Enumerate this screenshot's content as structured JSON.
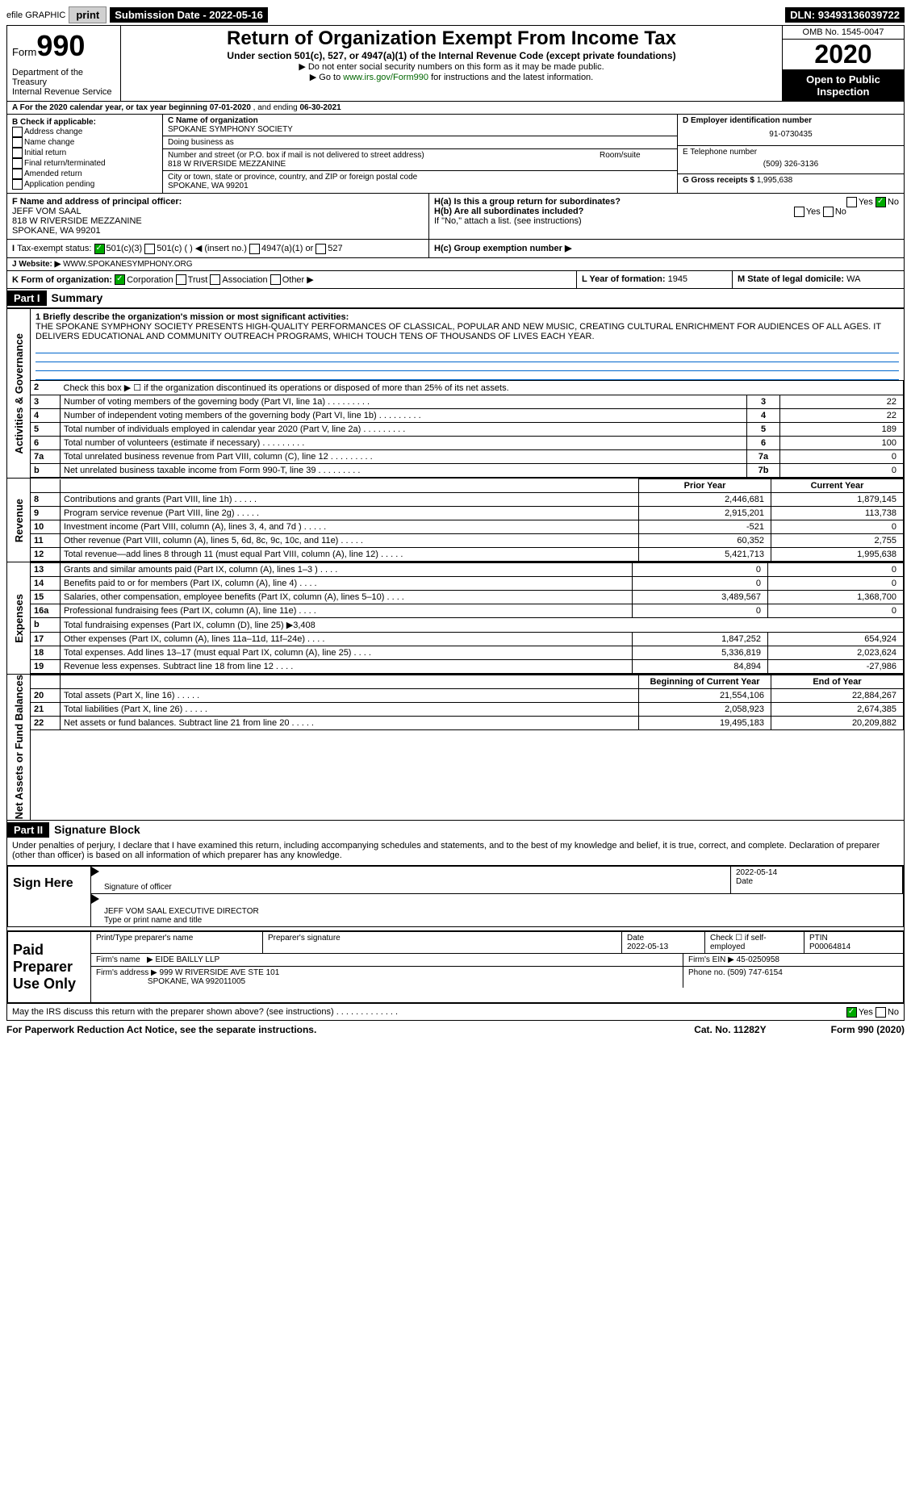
{
  "topbar": {
    "efile": "efile GRAPHIC",
    "print": "print",
    "subdate_label": "Submission Date -",
    "subdate": "2022-05-16",
    "dln_label": "DLN:",
    "dln": "93493136039722"
  },
  "hdr": {
    "form": "Form",
    "n990": "990",
    "title": "Return of Organization Exempt From Income Tax",
    "sub": "Under section 501(c), 527, or 4947(a)(1) of the Internal Revenue Code (except private foundations)",
    "note1": "▶ Do not enter social security numbers on this form as it may be made public.",
    "note2": "▶ Go to ",
    "link": "www.irs.gov/Form990",
    "note2b": " for instructions and the latest information.",
    "dept": "Department of the Treasury",
    "irs": "Internal Revenue Service",
    "omb": "OMB No. 1545-0047",
    "year": "2020",
    "open": "Open to Public Inspection"
  },
  "A": {
    "text": "A For the 2020 calendar year, or tax year beginning ",
    "d1": "07-01-2020",
    "mid": " , and ending ",
    "d2": "06-30-2021"
  },
  "B": {
    "label": "B Check if applicable:",
    "items": [
      "Address change",
      "Name change",
      "Initial return",
      "Final return/terminated",
      "Amended return",
      "Application pending"
    ]
  },
  "C": {
    "label": "C Name of organization",
    "name": "SPOKANE SYMPHONY SOCIETY",
    "dba": "Doing business as",
    "addr_label": "Number and street (or P.O. box if mail is not delivered to street address)",
    "addr": "818 W RIVERSIDE MEZZANINE",
    "room": "Room/suite",
    "city_label": "City or town, state or province, country, and ZIP or foreign postal code",
    "city": "SPOKANE, WA  99201"
  },
  "D": {
    "label": "D Employer identification number",
    "ein": "91-0730435"
  },
  "E": {
    "label": "E Telephone number",
    "tel": "(509) 326-3136"
  },
  "G": {
    "label": "G Gross receipts $",
    "val": "1,995,638"
  },
  "F": {
    "label": "F Name and address of principal officer:",
    "name": "JEFF VOM SAAL",
    "addr": "818 W RIVERSIDE MEZZANINE",
    "city": "SPOKANE, WA  99201"
  },
  "H": {
    "a": "H(a)  Is this a group return for subordinates?",
    "b": "H(b)  Are all subordinates included?",
    "bno": "If \"No,\" attach a list. (see instructions)",
    "c": "H(c)  Group exemption number ▶",
    "yes": "Yes",
    "no": "No"
  },
  "I": {
    "label": "Tax-exempt status:",
    "o1": "501(c)(3)",
    "o2": "501(c) (   ) ◀ (insert no.)",
    "o3": "4947(a)(1) or",
    "o4": "527"
  },
  "J": {
    "label": "Website: ▶",
    "val": "WWW.SPOKANESYMPHONY.ORG"
  },
  "K": {
    "label": "K Form of organization:",
    "opts": [
      "Corporation",
      "Trust",
      "Association",
      "Other ▶"
    ]
  },
  "L": {
    "label": "L Year of formation:",
    "val": "1945"
  },
  "M": {
    "label": "M State of legal domicile:",
    "val": "WA"
  },
  "partI": {
    "bar": "Part I",
    "title": "Summary"
  },
  "mission": {
    "line": "1  Briefly describe the organization's mission or most significant activities:",
    "text": "THE SPOKANE SYMPHONY SOCIETY PRESENTS HIGH-QUALITY PERFORMANCES OF CLASSICAL, POPULAR AND NEW MUSIC, CREATING CULTURAL ENRICHMENT FOR AUDIENCES OF ALL AGES. IT DELIVERS EDUCATIONAL AND COMMUNITY OUTREACH PROGRAMS, WHICH TOUCH TENS OF THOUSANDS OF LIVES EACH YEAR."
  },
  "gov": {
    "label": "Activities & Governance",
    "rows": [
      {
        "n": "2",
        "t": "Check this box ▶ ☐ if the organization discontinued its operations or disposed of more than 25% of its net assets.",
        "k": "",
        "v": ""
      },
      {
        "n": "3",
        "t": "Number of voting members of the governing body (Part VI, line 1a)",
        "k": "3",
        "v": "22"
      },
      {
        "n": "4",
        "t": "Number of independent voting members of the governing body (Part VI, line 1b)",
        "k": "4",
        "v": "22"
      },
      {
        "n": "5",
        "t": "Total number of individuals employed in calendar year 2020 (Part V, line 2a)",
        "k": "5",
        "v": "189"
      },
      {
        "n": "6",
        "t": "Total number of volunteers (estimate if necessary)",
        "k": "6",
        "v": "100"
      },
      {
        "n": "7a",
        "t": "Total unrelated business revenue from Part VIII, column (C), line 12",
        "k": "7a",
        "v": "0"
      },
      {
        "n": "b",
        "t": "Net unrelated business taxable income from Form 990-T, line 39",
        "k": "7b",
        "v": "0"
      }
    ]
  },
  "rev": {
    "label": "Revenue",
    "hdr_prior": "Prior Year",
    "hdr_curr": "Current Year",
    "rows": [
      {
        "n": "8",
        "t": "Contributions and grants (Part VIII, line 1h)",
        "p": "2,446,681",
        "c": "1,879,145"
      },
      {
        "n": "9",
        "t": "Program service revenue (Part VIII, line 2g)",
        "p": "2,915,201",
        "c": "113,738"
      },
      {
        "n": "10",
        "t": "Investment income (Part VIII, column (A), lines 3, 4, and 7d )",
        "p": "-521",
        "c": "0"
      },
      {
        "n": "11",
        "t": "Other revenue (Part VIII, column (A), lines 5, 6d, 8c, 9c, 10c, and 11e)",
        "p": "60,352",
        "c": "2,755"
      },
      {
        "n": "12",
        "t": "Total revenue—add lines 8 through 11 (must equal Part VIII, column (A), line 12)",
        "p": "5,421,713",
        "c": "1,995,638"
      }
    ]
  },
  "exp": {
    "label": "Expenses",
    "rows": [
      {
        "n": "13",
        "t": "Grants and similar amounts paid (Part IX, column (A), lines 1–3 )",
        "p": "0",
        "c": "0"
      },
      {
        "n": "14",
        "t": "Benefits paid to or for members (Part IX, column (A), line 4)",
        "p": "0",
        "c": "0"
      },
      {
        "n": "15",
        "t": "Salaries, other compensation, employee benefits (Part IX, column (A), lines 5–10)",
        "p": "3,489,567",
        "c": "1,368,700"
      },
      {
        "n": "16a",
        "t": "Professional fundraising fees (Part IX, column (A), line 11e)",
        "p": "0",
        "c": "0"
      },
      {
        "n": "b",
        "t": "Total fundraising expenses (Part IX, column (D), line 25) ▶3,408",
        "p": "",
        "c": ""
      },
      {
        "n": "17",
        "t": "Other expenses (Part IX, column (A), lines 11a–11d, 11f–24e)",
        "p": "1,847,252",
        "c": "654,924"
      },
      {
        "n": "18",
        "t": "Total expenses. Add lines 13–17 (must equal Part IX, column (A), line 25)",
        "p": "5,336,819",
        "c": "2,023,624"
      },
      {
        "n": "19",
        "t": "Revenue less expenses. Subtract line 18 from line 12",
        "p": "84,894",
        "c": "-27,986"
      }
    ]
  },
  "net": {
    "label": "Net Assets or Fund Balances",
    "hdr_b": "Beginning of Current Year",
    "hdr_e": "End of Year",
    "rows": [
      {
        "n": "20",
        "t": "Total assets (Part X, line 16)",
        "p": "21,554,106",
        "c": "22,884,267"
      },
      {
        "n": "21",
        "t": "Total liabilities (Part X, line 26)",
        "p": "2,058,923",
        "c": "2,674,385"
      },
      {
        "n": "22",
        "t": "Net assets or fund balances. Subtract line 21 from line 20",
        "p": "19,495,183",
        "c": "20,209,882"
      }
    ]
  },
  "partII": {
    "bar": "Part II",
    "title": "Signature Block"
  },
  "perjury": "Under penalties of perjury, I declare that I have examined this return, including accompanying schedules and statements, and to the best of my knowledge and belief, it is true, correct, and complete. Declaration of preparer (other than officer) is based on all information of which preparer has any knowledge.",
  "sign": {
    "here": "Sign Here",
    "sigoff": "Signature of officer",
    "date": "Date",
    "dateval": "2022-05-14",
    "name": "JEFF VOM SAAL  EXECUTIVE DIRECTOR",
    "nametitle": "Type or print name and title"
  },
  "paid": {
    "label": "Paid Preparer Use Only",
    "pn": "Print/Type preparer's name",
    "ps": "Preparer's signature",
    "d": "Date",
    "dv": "2022-05-13",
    "chk": "Check ☐ if self-employed",
    "ptin": "PTIN",
    "ptinv": "P00064814",
    "fn": "Firm's name",
    "fnv": "▶ EIDE BAILLY LLP",
    "fein": "Firm's EIN ▶",
    "feinv": "45-0250958",
    "fa": "Firm's address ▶",
    "fav": "999 W RIVERSIDE AVE STE 101",
    "fav2": "SPOKANE, WA  992011005",
    "ph": "Phone no.",
    "phv": "(509) 747-6154"
  },
  "discuss": "May the IRS discuss this return with the preparer shown above? (see instructions)",
  "footer": {
    "pra": "For Paperwork Reduction Act Notice, see the separate instructions.",
    "cat": "Cat. No. 11282Y",
    "form": "Form 990 (2020)"
  }
}
